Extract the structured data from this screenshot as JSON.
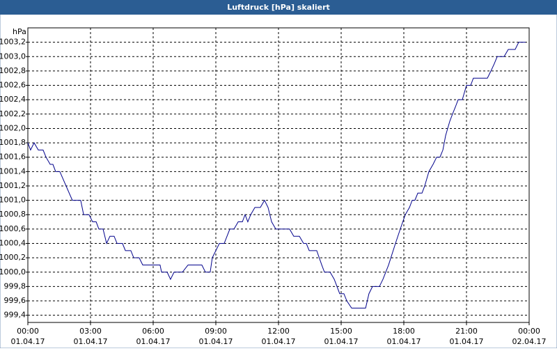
{
  "chart_data": {
    "type": "line",
    "title": "Luftdruck [hPa] skaliert",
    "y_label": "hPa",
    "x": [
      0,
      0.13,
      0.3,
      0.5,
      0.73,
      0.87,
      1.07,
      1.2,
      1.33,
      1.53,
      2.13,
      2.53,
      2.67,
      2.93,
      3.1,
      3.27,
      3.4,
      3.6,
      3.77,
      3.93,
      4.13,
      4.27,
      4.53,
      4.67,
      4.93,
      5.07,
      5.33,
      5.5,
      6.33,
      6.4,
      6.67,
      6.83,
      7,
      7.4,
      7.67,
      8.33,
      8.5,
      8.73,
      8.83,
      9.17,
      9.4,
      9.67,
      9.87,
      10.07,
      10.27,
      10.4,
      10.53,
      10.67,
      10.87,
      11.13,
      11.33,
      11.5,
      11.67,
      11.87,
      12.53,
      12.73,
      13,
      13.2,
      13.33,
      13.47,
      13.83,
      14.07,
      14.2,
      14.47,
      14.67,
      14.93,
      15.13,
      15.27,
      15.5,
      16.17,
      16.33,
      16.5,
      16.83,
      17,
      17.27,
      17.6,
      17.83,
      18.07,
      18.27,
      18.4,
      18.53,
      18.67,
      18.87,
      19,
      19.2,
      19.4,
      19.57,
      19.73,
      19.87,
      20,
      20.2,
      20.33,
      20.47,
      20.6,
      20.8,
      21,
      21.2,
      21.33,
      22,
      22.17,
      22.33,
      22.47,
      22.8,
      23,
      23.33,
      23.5,
      23.83
    ],
    "series": [
      {
        "name": "Luftdruck",
        "color": "#00008b",
        "values": [
          1001.8,
          1001.7,
          1001.8,
          1001.7,
          1001.7,
          1001.6,
          1001.5,
          1001.5,
          1001.4,
          1001.4,
          1001.0,
          1001.0,
          1000.8,
          1000.8,
          1000.7,
          1000.7,
          1000.6,
          1000.6,
          1000.4,
          1000.5,
          1000.5,
          1000.4,
          1000.4,
          1000.3,
          1000.3,
          1000.2,
          1000.2,
          1000.1,
          1000.1,
          1000.0,
          1000.0,
          999.9,
          1000.0,
          1000.0,
          1000.1,
          1000.1,
          1000.0,
          1000.0,
          1000.2,
          1000.4,
          1000.4,
          1000.6,
          1000.6,
          1000.7,
          1000.7,
          1000.8,
          1000.7,
          1000.8,
          1000.9,
          1000.9,
          1001.0,
          1000.9,
          1000.7,
          1000.6,
          1000.6,
          1000.5,
          1000.5,
          1000.4,
          1000.4,
          1000.3,
          1000.3,
          1000.1,
          1000.0,
          1000.0,
          999.9,
          999.7,
          999.7,
          999.6,
          999.5,
          999.5,
          999.7,
          999.8,
          999.8,
          999.9,
          1000.1,
          1000.4,
          1000.6,
          1000.8,
          1000.9,
          1001.0,
          1001.0,
          1001.1,
          1001.1,
          1001.2,
          1001.4,
          1001.5,
          1001.6,
          1001.6,
          1001.7,
          1001.9,
          1002.1,
          1002.2,
          1002.3,
          1002.4,
          1002.4,
          1002.6,
          1002.6,
          1002.7,
          1002.7,
          1002.8,
          1002.9,
          1003.0,
          1003.0,
          1003.1,
          1003.1,
          1003.2,
          1003.2
        ]
      }
    ],
    "xlim": [
      0,
      24
    ],
    "xticks": [
      {
        "value": 0,
        "label": "00:00"
      },
      {
        "value": 3,
        "label": "03:00"
      },
      {
        "value": 6,
        "label": "06:00"
      },
      {
        "value": 9,
        "label": "09:00"
      },
      {
        "value": 12,
        "label": "12:00"
      },
      {
        "value": 15,
        "label": "15:00"
      },
      {
        "value": 18,
        "label": "18:00"
      },
      {
        "value": 21,
        "label": "21:00"
      },
      {
        "value": 24,
        "label": "00:00"
      }
    ],
    "xtick_dates": [
      "01.04.17",
      "01.04.17",
      "01.04.17",
      "01.04.17",
      "01.04.17",
      "01.04.17",
      "01.04.17",
      "01.04.17",
      "02.04.17"
    ],
    "ylim": [
      999.3,
      1003.4
    ],
    "yticks": [
      {
        "value": 999.4,
        "label": "999,4"
      },
      {
        "value": 999.6,
        "label": "999,6"
      },
      {
        "value": 999.8,
        "label": "999,8"
      },
      {
        "value": 1000.0,
        "label": "1000,0"
      },
      {
        "value": 1000.2,
        "label": "1000,2"
      },
      {
        "value": 1000.4,
        "label": "1000,4"
      },
      {
        "value": 1000.6,
        "label": "1000,6"
      },
      {
        "value": 1000.8,
        "label": "1000,8"
      },
      {
        "value": 1001.0,
        "label": "1001,0"
      },
      {
        "value": 1001.2,
        "label": "1001,2"
      },
      {
        "value": 1001.4,
        "label": "1001,4"
      },
      {
        "value": 1001.6,
        "label": "1001,6"
      },
      {
        "value": 1001.8,
        "label": "1001,8"
      },
      {
        "value": 1002.0,
        "label": "1002,0"
      },
      {
        "value": 1002.2,
        "label": "1002,2"
      },
      {
        "value": 1002.4,
        "label": "1002,4"
      },
      {
        "value": 1002.6,
        "label": "1002,6"
      },
      {
        "value": 1002.8,
        "label": "1002,8"
      },
      {
        "value": 1003.0,
        "label": "1003,0"
      },
      {
        "value": 1003.2,
        "label": "1003,2"
      }
    ],
    "grid": true
  }
}
